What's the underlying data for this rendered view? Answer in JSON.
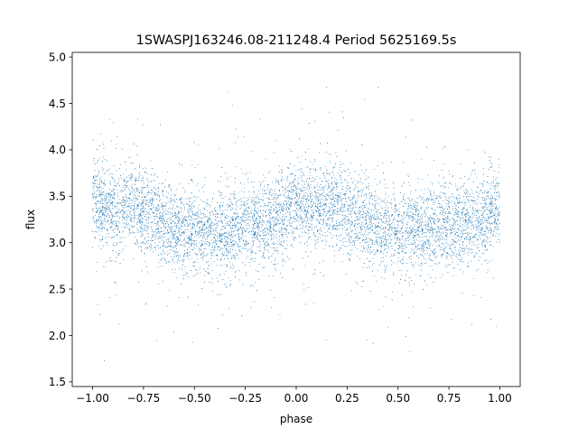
{
  "chart_data": {
    "type": "scatter",
    "title": "1SWASPJ163246.08-211248.4 Period 5625169.5s",
    "xlabel": "phase",
    "ylabel": "flux",
    "xlim": [
      -1.1,
      1.1
    ],
    "ylim": [
      1.45,
      5.05
    ],
    "x_ticks": [
      -1.0,
      -0.75,
      -0.5,
      -0.25,
      0.0,
      0.25,
      0.5,
      0.75,
      1.0
    ],
    "x_tick_labels": [
      "−1.00",
      "−0.75",
      "−0.50",
      "−0.25",
      "0.00",
      "0.25",
      "0.50",
      "0.75",
      "1.00"
    ],
    "y_ticks": [
      1.5,
      2.0,
      2.5,
      3.0,
      3.5,
      4.0,
      4.5,
      5.0
    ],
    "y_tick_labels": [
      "1.5",
      "2.0",
      "2.5",
      "3.0",
      "3.5",
      "4.0",
      "4.5",
      "5.0"
    ],
    "grid": false,
    "marker_color": "#1f77b4",
    "series": [
      {
        "x_range": [
          -1.0,
          1.0
        ],
        "profile": [
          {
            "phase": -1.0,
            "flux": 3.45
          },
          {
            "phase": -0.9,
            "flux": 3.35
          },
          {
            "phase": -0.8,
            "flux": 3.4
          },
          {
            "phase": -0.7,
            "flux": 3.3
          },
          {
            "phase": -0.6,
            "flux": 3.15
          },
          {
            "phase": -0.5,
            "flux": 3.1
          },
          {
            "phase": -0.4,
            "flux": 3.1
          },
          {
            "phase": -0.3,
            "flux": 3.15
          },
          {
            "phase": -0.2,
            "flux": 3.2
          },
          {
            "phase": -0.1,
            "flux": 3.25
          },
          {
            "phase": 0.0,
            "flux": 3.4
          },
          {
            "phase": 0.1,
            "flux": 3.35
          },
          {
            "phase": 0.2,
            "flux": 3.4
          },
          {
            "phase": 0.3,
            "flux": 3.3
          },
          {
            "phase": 0.4,
            "flux": 3.15
          },
          {
            "phase": 0.5,
            "flux": 3.1
          },
          {
            "phase": 0.6,
            "flux": 3.1
          },
          {
            "phase": 0.7,
            "flux": 3.15
          },
          {
            "phase": 0.8,
            "flux": 3.2
          },
          {
            "phase": 0.9,
            "flux": 3.25
          },
          {
            "phase": 1.0,
            "flux": 3.4
          }
        ],
        "flux_min": 1.55,
        "flux_max": 4.9,
        "approx_points": 9000
      }
    ]
  }
}
